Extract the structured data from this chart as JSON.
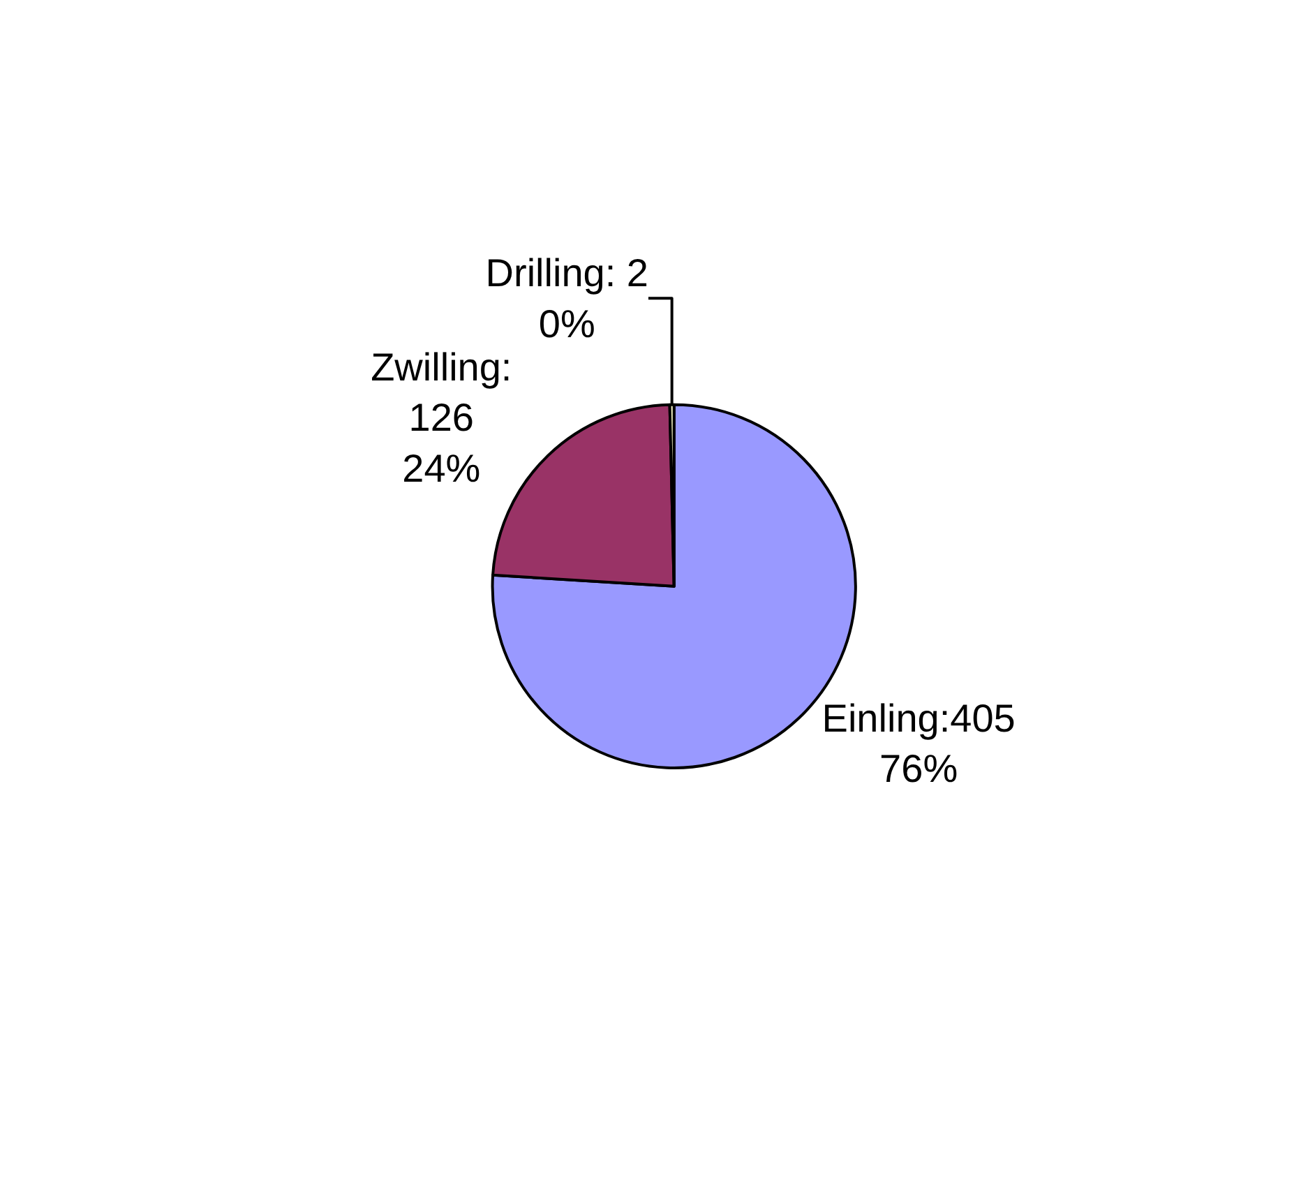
{
  "chart_data": {
    "type": "pie",
    "categories": [
      "Einling",
      "Zwilling",
      "Drilling"
    ],
    "values": [
      405,
      126,
      2
    ],
    "colors": [
      "#9999ff",
      "#993366",
      "#ffffcc"
    ],
    "value_labels": [
      ":405\n76%",
      ":\n126\n24%",
      ": 2\n0%"
    ]
  }
}
